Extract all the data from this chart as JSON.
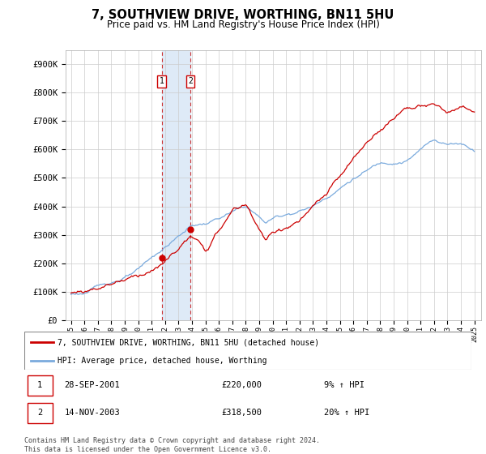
{
  "title": "7, SOUTHVIEW DRIVE, WORTHING, BN11 5HU",
  "subtitle": "Price paid vs. HM Land Registry's House Price Index (HPI)",
  "legend_entry1": "7, SOUTHVIEW DRIVE, WORTHING, BN11 5HU (detached house)",
  "legend_entry2": "HPI: Average price, detached house, Worthing",
  "transaction1_date": "28-SEP-2001",
  "transaction1_price": "£220,000",
  "transaction1_hpi": "9% ↑ HPI",
  "transaction2_date": "14-NOV-2003",
  "transaction2_price": "£318,500",
  "transaction2_hpi": "20% ↑ HPI",
  "footnote": "Contains HM Land Registry data © Crown copyright and database right 2024.\nThis data is licensed under the Open Government Licence v3.0.",
  "sale1_year": 2001.75,
  "sale1_price": 220000,
  "sale2_year": 2003.87,
  "sale2_price": 318500,
  "line_color_red": "#cc0000",
  "line_color_blue": "#7aaadd",
  "highlight_color": "#deeaf7",
  "ylim": [
    0,
    950000
  ],
  "yticks": [
    0,
    100000,
    200000,
    300000,
    400000,
    500000,
    600000,
    700000,
    800000,
    900000
  ],
  "ytick_labels": [
    "£0",
    "£100K",
    "£200K",
    "£300K",
    "£400K",
    "£500K",
    "£600K",
    "£700K",
    "£800K",
    "£900K"
  ]
}
